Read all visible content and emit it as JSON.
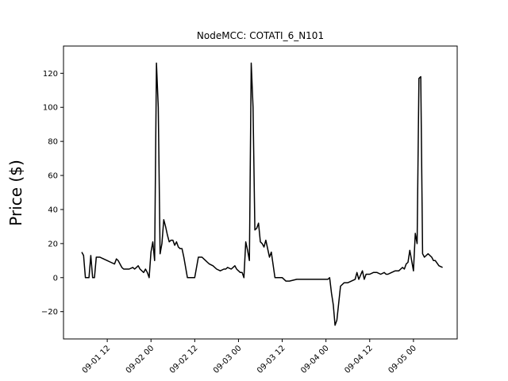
{
  "chart_data": {
    "type": "line",
    "title": "NodeMCC: COTATI_6_N101",
    "xlabel": "",
    "ylabel": "Price ($)",
    "x_axis": {
      "kind": "datetime",
      "range": [
        "2016-09-01 00:00",
        "2016-09-05 12:00"
      ],
      "tick_labels": [
        "09-01 12",
        "09-02 00",
        "09-02 12",
        "09-03 00",
        "09-03 12",
        "09-04 00",
        "09-04 12",
        "09-05 00"
      ],
      "tick_hours": [
        12,
        24,
        36,
        48,
        60,
        72,
        84,
        96
      ]
    },
    "y_axis": {
      "range": [
        -36,
        136
      ],
      "ticks": [
        -20,
        0,
        20,
        40,
        60,
        80,
        100,
        120
      ]
    },
    "grid": false,
    "line_color": "#000000",
    "series": [
      {
        "x": [
          "2016-09-01 05:00",
          "2016-09-01 05:30",
          "2016-09-01 06:00",
          "2016-09-01 06:30",
          "2016-09-01 07:00",
          "2016-09-01 07:30",
          "2016-09-01 08:00",
          "2016-09-01 08:30",
          "2016-09-01 09:00",
          "2016-09-01 10:00",
          "2016-09-01 11:00",
          "2016-09-01 12:00",
          "2016-09-01 13:00",
          "2016-09-01 14:00",
          "2016-09-01 14:30",
          "2016-09-01 15:00",
          "2016-09-01 15:30",
          "2016-09-01 16:00",
          "2016-09-01 16:30",
          "2016-09-01 17:00",
          "2016-09-01 18:00",
          "2016-09-01 19:00",
          "2016-09-01 19:30",
          "2016-09-01 20:00",
          "2016-09-01 20:30",
          "2016-09-01 21:00",
          "2016-09-01 21:30",
          "2016-09-01 22:00",
          "2016-09-01 22:30",
          "2016-09-01 23:00",
          "2016-09-01 23:30",
          "2016-09-02 00:00",
          "2016-09-02 00:30",
          "2016-09-02 01:00",
          "2016-09-02 01:30",
          "2016-09-02 02:00",
          "2016-09-02 02:30",
          "2016-09-02 03:00",
          "2016-09-02 03:30",
          "2016-09-02 04:00",
          "2016-09-02 04:30",
          "2016-09-02 05:00",
          "2016-09-02 05:30",
          "2016-09-02 06:00",
          "2016-09-02 06:30",
          "2016-09-02 07:00",
          "2016-09-02 07:30",
          "2016-09-02 08:00",
          "2016-09-02 08:30",
          "2016-09-02 09:00",
          "2016-09-02 10:00",
          "2016-09-02 11:00",
          "2016-09-02 12:00",
          "2016-09-02 13:00",
          "2016-09-02 14:00",
          "2016-09-02 14:30",
          "2016-09-02 15:00",
          "2016-09-02 15:30",
          "2016-09-02 16:00",
          "2016-09-02 17:00",
          "2016-09-02 18:00",
          "2016-09-02 19:00",
          "2016-09-02 20:00",
          "2016-09-02 20:30",
          "2016-09-02 21:00",
          "2016-09-02 22:00",
          "2016-09-02 22:30",
          "2016-09-02 23:00",
          "2016-09-02 23:30",
          "2016-09-03 00:00",
          "2016-09-03 00:30",
          "2016-09-03 01:00",
          "2016-09-03 01:30",
          "2016-09-03 02:00",
          "2016-09-03 02:30",
          "2016-09-03 03:00",
          "2016-09-03 03:30",
          "2016-09-03 04:00",
          "2016-09-03 04:30",
          "2016-09-03 05:00",
          "2016-09-03 05:30",
          "2016-09-03 06:00",
          "2016-09-03 06:30",
          "2016-09-03 07:00",
          "2016-09-03 07:30",
          "2016-09-03 08:00",
          "2016-09-03 08:30",
          "2016-09-03 09:00",
          "2016-09-03 10:00",
          "2016-09-03 11:00",
          "2016-09-03 12:00",
          "2016-09-03 13:00",
          "2016-09-03 14:00",
          "2016-09-03 16:00",
          "2016-09-03 18:00",
          "2016-09-03 20:00",
          "2016-09-03 22:00",
          "2016-09-04 00:00",
          "2016-09-04 00:30",
          "2016-09-04 01:00",
          "2016-09-04 01:30",
          "2016-09-04 02:00",
          "2016-09-04 02:30",
          "2016-09-04 03:00",
          "2016-09-04 04:00",
          "2016-09-04 05:00",
          "2016-09-04 06:00",
          "2016-09-04 07:00",
          "2016-09-04 08:00",
          "2016-09-04 08:30",
          "2016-09-04 09:00",
          "2016-09-04 10:00",
          "2016-09-04 10:30",
          "2016-09-04 11:00",
          "2016-09-04 11:30",
          "2016-09-04 12:00",
          "2016-09-04 13:00",
          "2016-09-04 14:00",
          "2016-09-04 15:00",
          "2016-09-04 16:00",
          "2016-09-04 16:30",
          "2016-09-04 17:00",
          "2016-09-04 18:00",
          "2016-09-04 19:00",
          "2016-09-04 20:00",
          "2016-09-04 20:30",
          "2016-09-04 21:00",
          "2016-09-04 21:30",
          "2016-09-04 22:00",
          "2016-09-04 22:30",
          "2016-09-04 23:00",
          "2016-09-04 23:30",
          "2016-09-05 00:00",
          "2016-09-05 00:30",
          "2016-09-05 01:00",
          "2016-09-05 01:30",
          "2016-09-05 02:00",
          "2016-09-05 02:30",
          "2016-09-05 03:00",
          "2016-09-05 04:00",
          "2016-09-05 05:00",
          "2016-09-05 05:30",
          "2016-09-05 06:00",
          "2016-09-05 07:00",
          "2016-09-05 08:00"
        ],
        "y": [
          15,
          13,
          0,
          0,
          0,
          13,
          0,
          0,
          12,
          12,
          11,
          10,
          9,
          8,
          11,
          10,
          8,
          6,
          5,
          5,
          5,
          6,
          5,
          6,
          7,
          5,
          4,
          3,
          5,
          3,
          0,
          15,
          21,
          10,
          126,
          100,
          14,
          20,
          34,
          30,
          25,
          21,
          22,
          22,
          19,
          21,
          18,
          17,
          17,
          12,
          0,
          0,
          0,
          12,
          12,
          11,
          10,
          9,
          8,
          7,
          5,
          4,
          5,
          5,
          6,
          5,
          6,
          7,
          5,
          4,
          3,
          3,
          0,
          21,
          16,
          10,
          126,
          100,
          28,
          29,
          32,
          21,
          20,
          18,
          22,
          17,
          12,
          15,
          0,
          0,
          0,
          -2,
          -2,
          -1,
          -1,
          -1,
          -1,
          -1,
          -1,
          0,
          -9,
          -16,
          -28,
          -25,
          -5,
          -3,
          -3,
          -2,
          -1,
          3,
          -1,
          4,
          -1,
          2,
          2,
          2,
          3,
          3,
          2,
          3,
          2,
          2,
          3,
          4,
          4,
          5,
          6,
          5,
          8,
          9,
          16,
          10,
          4,
          26,
          20,
          117,
          118,
          14,
          12,
          14,
          12,
          10,
          10,
          7,
          6
        ]
      }
    ]
  }
}
